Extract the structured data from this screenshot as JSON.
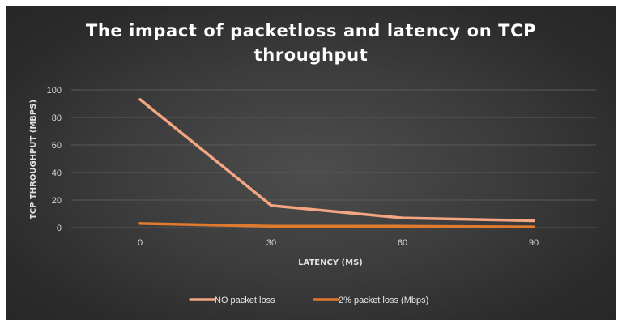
{
  "chart_data": {
    "type": "line",
    "title_lines": [
      "The impact of packetloss and latency on TCP",
      "throughput"
    ],
    "xlabel": "LATENCY (MS)",
    "ylabel": "TCP THROUGHPUT (MBPS)",
    "categories": [
      "0",
      "30",
      "60",
      "90"
    ],
    "ylim": [
      0,
      100
    ],
    "yticks": [
      "0",
      "20",
      "40",
      "60",
      "80",
      "100"
    ],
    "grid": true,
    "legend_position": "bottom",
    "series": [
      {
        "name": "NO packet loss",
        "values": [
          93,
          16,
          7,
          5
        ],
        "color": "#f4a582"
      },
      {
        "name": "2% packet loss (Mbps)",
        "values": [
          3,
          1,
          1,
          0.5
        ],
        "color": "#e07a2e"
      }
    ]
  },
  "colors": {
    "background": "#2b2b2b",
    "gridline": "#595959",
    "text": "#d9d9d9"
  }
}
